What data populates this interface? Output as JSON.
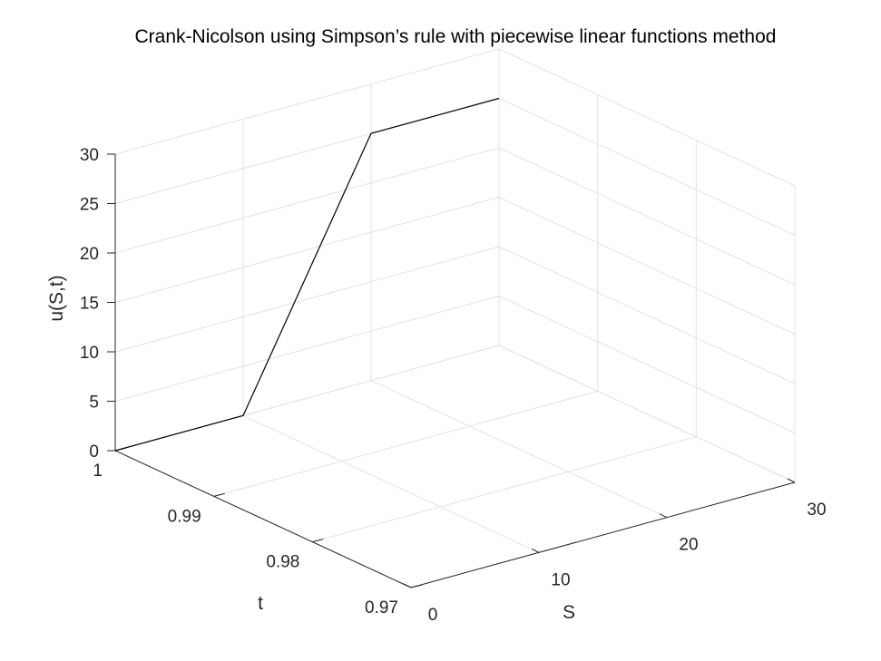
{
  "chart_data": {
    "type": "line",
    "title": "Crank-Nicolson using Simpson’s  rule  with piecewise linear functions method",
    "xlabel": "S",
    "ylabel": "t",
    "zlabel": "u(S,t)",
    "xlim": [
      0,
      30
    ],
    "ylim": [
      0.97,
      1
    ],
    "zlim": [
      0,
      30
    ],
    "x_ticks": [
      "0",
      "10",
      "20",
      "30"
    ],
    "y_ticks": [
      "0.97",
      "0.98",
      "0.99",
      "1"
    ],
    "z_ticks": [
      "0",
      "5",
      "10",
      "15",
      "20",
      "25",
      "30"
    ],
    "grid": true,
    "series": [
      {
        "color": "#000000",
        "points": [
          {
            "S": 0,
            "t": 1,
            "u": 0
          },
          {
            "S": 10,
            "t": 1,
            "u": 0
          },
          {
            "S": 20,
            "t": 1,
            "u": 25
          },
          {
            "S": 30,
            "t": 1,
            "u": 25
          }
        ]
      }
    ]
  }
}
